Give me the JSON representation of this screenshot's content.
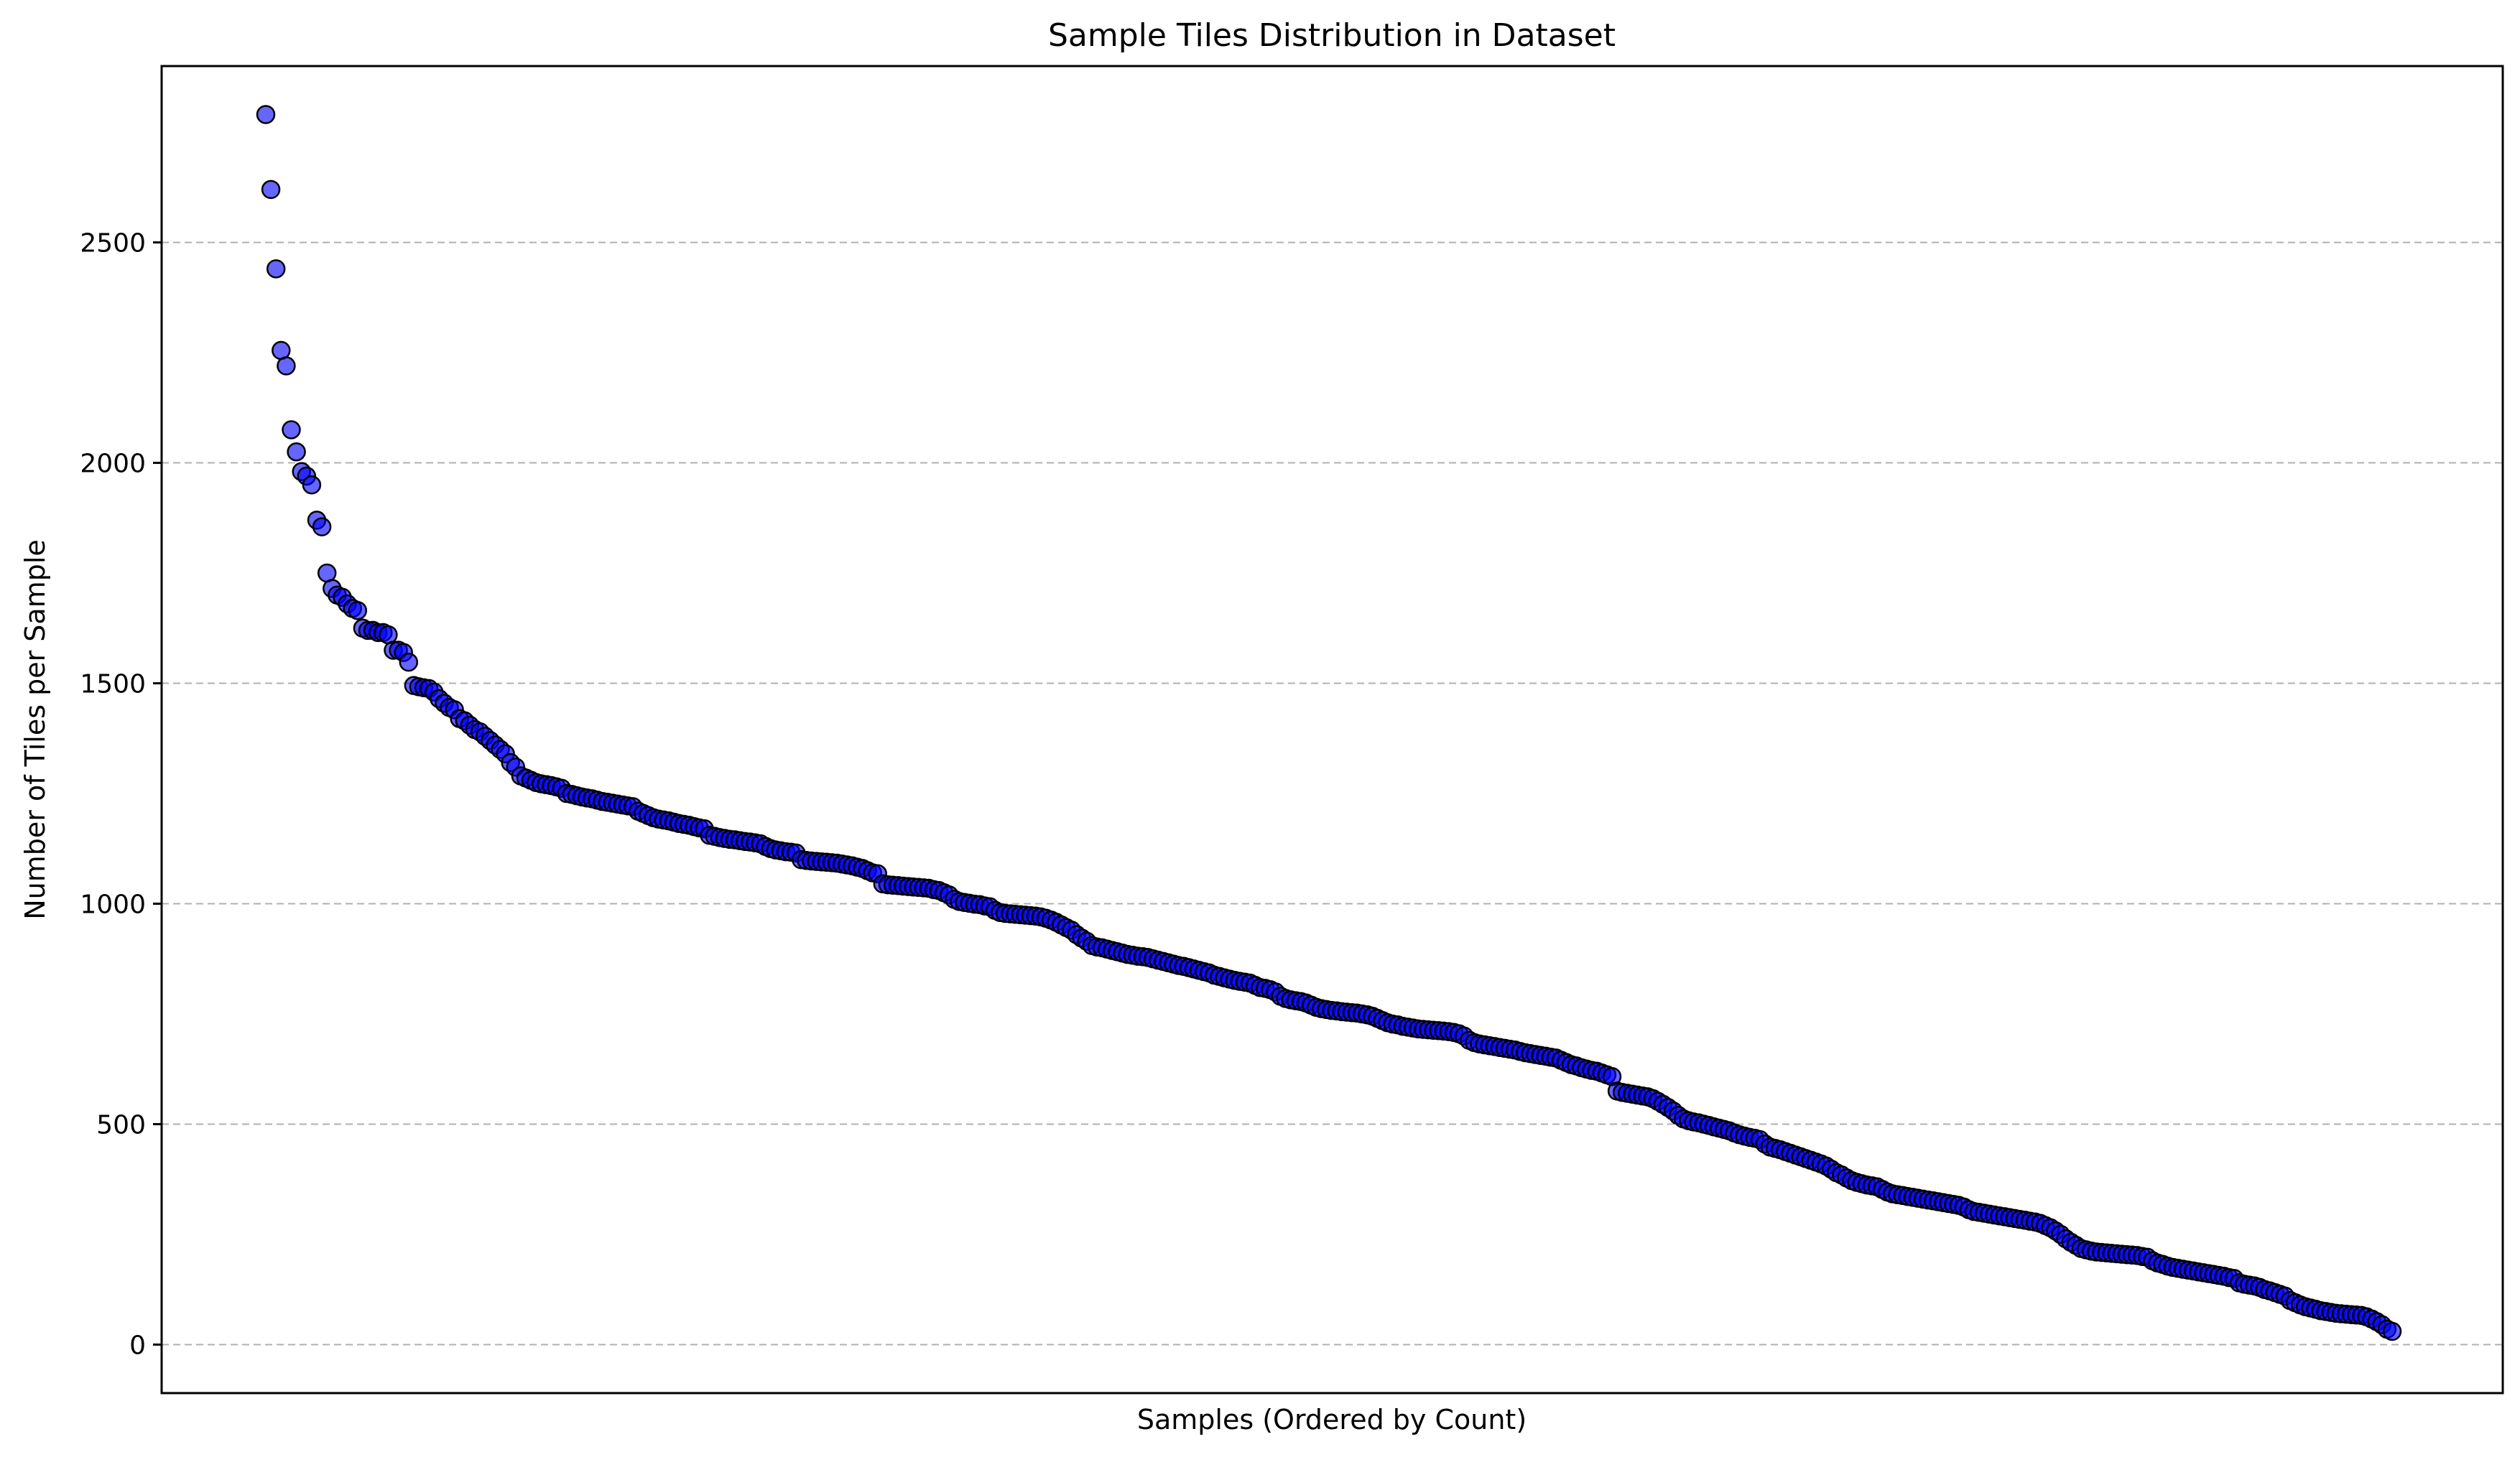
{
  "chart_data": {
    "type": "scatter",
    "title": "Sample Tiles Distribution in Dataset",
    "xlabel": "Samples (Ordered by Count)",
    "ylabel": "Number of Tiles per Sample",
    "ylim": [
      -110,
      2900
    ],
    "yticks": [
      0,
      500,
      1000,
      1500,
      2000,
      2500
    ],
    "xticks_visible": false,
    "grid": "y-axis dashed",
    "marker_fill": "#0000ff",
    "marker_alpha": 0.6,
    "marker_edge": "#000000",
    "grid_color": "#b0b0b0",
    "series_order": "descending",
    "y_values": [
      2790,
      2620,
      2440,
      2255,
      2220,
      2075,
      2025,
      1980,
      1970,
      1950,
      1870,
      1855,
      1750,
      1715,
      1700,
      1695,
      1680,
      1670,
      1665,
      1625,
      1620,
      1620,
      1615,
      1615,
      1610,
      1575,
      1575,
      1570,
      1548,
      1495,
      1492,
      1490,
      1488,
      1480,
      1465,
      1455,
      1445,
      1440,
      1420,
      1415,
      1405,
      1395,
      1390,
      1380,
      1370,
      1360,
      1350,
      1340,
      1320,
      1310,
      1290,
      1285,
      1280,
      1275,
      1272,
      1270,
      1268,
      1265,
      1262,
      1250,
      1248,
      1245,
      1242,
      1240,
      1238,
      1235,
      1232,
      1230,
      1228,
      1226,
      1224,
      1222,
      1220,
      1210,
      1205,
      1200,
      1195,
      1192,
      1190,
      1188,
      1185,
      1182,
      1180,
      1178,
      1175,
      1172,
      1170,
      1155,
      1153,
      1150,
      1148,
      1146,
      1145,
      1143,
      1141,
      1140,
      1138,
      1136,
      1130,
      1125,
      1122,
      1120,
      1118,
      1117,
      1115,
      1100,
      1098,
      1097,
      1096,
      1095,
      1094,
      1093,
      1092,
      1090,
      1088,
      1086,
      1083,
      1080,
      1075,
      1070,
      1068,
      1045,
      1043,
      1042,
      1041,
      1040,
      1039,
      1038,
      1037,
      1036,
      1035,
      1032,
      1030,
      1025,
      1020,
      1010,
      1005,
      1003,
      1001,
      999,
      998,
      995,
      993,
      985,
      980,
      978,
      977,
      976,
      975,
      974,
      973,
      972,
      970,
      967,
      963,
      958,
      952,
      946,
      940,
      930,
      922,
      915,
      905,
      902,
      900,
      897,
      894,
      891,
      888,
      885,
      883,
      881,
      880,
      878,
      875,
      872,
      869,
      866,
      863,
      860,
      858,
      855,
      852,
      849,
      846,
      843,
      838,
      835,
      832,
      829,
      826,
      824,
      822,
      820,
      815,
      810,
      808,
      805,
      800,
      790,
      785,
      782,
      780,
      778,
      775,
      770,
      765,
      762,
      760,
      758,
      757,
      755,
      754,
      753,
      752,
      750,
      748,
      745,
      740,
      735,
      730,
      727,
      725,
      722,
      720,
      718,
      716,
      715,
      714,
      713,
      712,
      711,
      710,
      708,
      705,
      700,
      690,
      685,
      682,
      680,
      678,
      676,
      674,
      672,
      670,
      668,
      665,
      662,
      660,
      658,
      656,
      654,
      652,
      650,
      645,
      640,
      635,
      632,
      628,
      625,
      622,
      620,
      616,
      612,
      608,
      575,
      572,
      570,
      568,
      566,
      564,
      562,
      558,
      552,
      545,
      538,
      530,
      520,
      512,
      508,
      505,
      503,
      500,
      497,
      494,
      491,
      488,
      485,
      480,
      476,
      473,
      470,
      468,
      465,
      455,
      448,
      445,
      442,
      438,
      434,
      430,
      426,
      422,
      418,
      414,
      410,
      405,
      398,
      390,
      385,
      378,
      372,
      368,
      365,
      362,
      360,
      358,
      352,
      346,
      342,
      340,
      338,
      336,
      334,
      332,
      330,
      328,
      326,
      324,
      322,
      320,
      318,
      316,
      312,
      306,
      302,
      300,
      298,
      296,
      294,
      292,
      290,
      288,
      286,
      284,
      282,
      280,
      278,
      275,
      270,
      265,
      258,
      250,
      240,
      232,
      225,
      218,
      215,
      212,
      210,
      209,
      208,
      207,
      206,
      205,
      204,
      203,
      202,
      200,
      198,
      190,
      185,
      182,
      178,
      175,
      173,
      171,
      169,
      167,
      165,
      163,
      161,
      159,
      157,
      155,
      152,
      150,
      140,
      137,
      135,
      133,
      130,
      125,
      122,
      118,
      114,
      110,
      100,
      95,
      90,
      86,
      83,
      80,
      77,
      75,
      73,
      71,
      70,
      69,
      68,
      67,
      66,
      63,
      58,
      52,
      45,
      35,
      30
    ]
  }
}
